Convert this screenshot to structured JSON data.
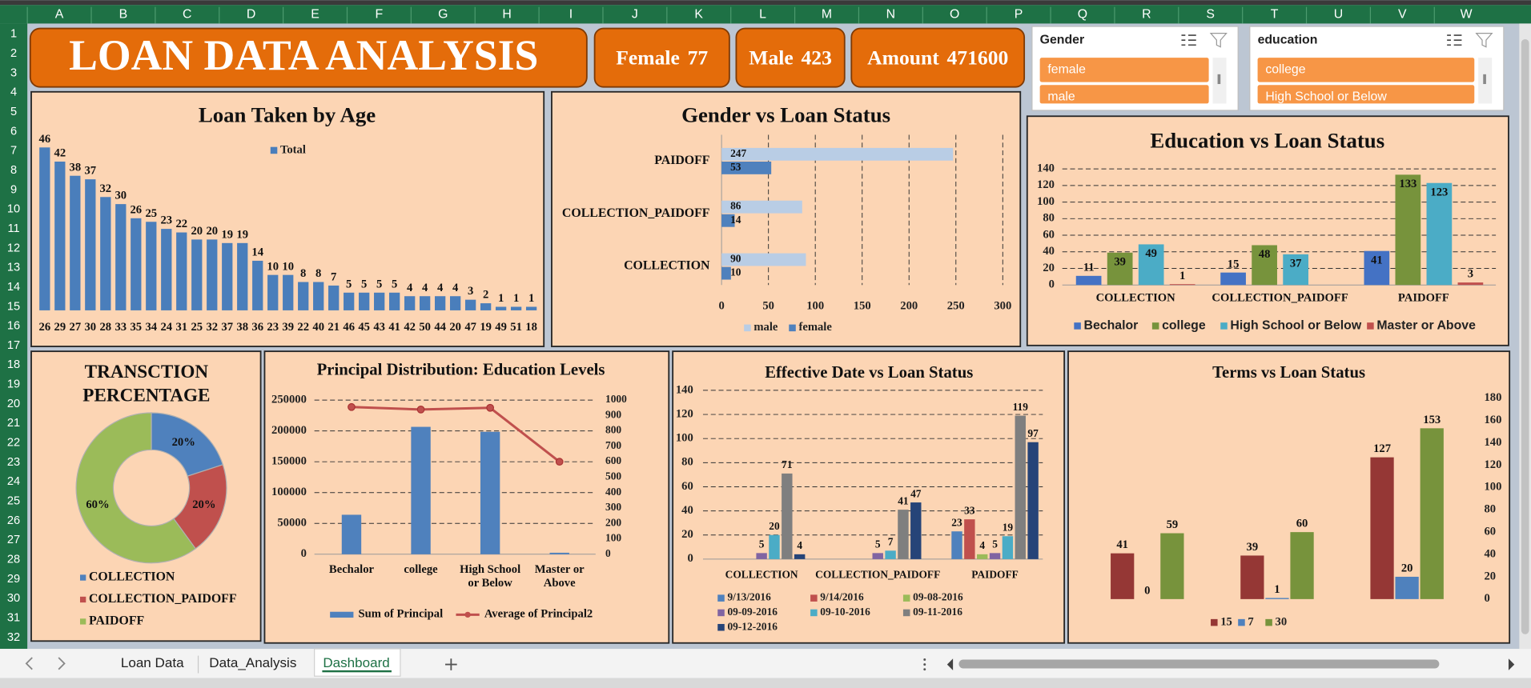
{
  "sheet": {
    "columns": [
      "A",
      "B",
      "C",
      "D",
      "E",
      "F",
      "G",
      "H",
      "I",
      "J",
      "K",
      "L",
      "M",
      "N",
      "O",
      "P",
      "Q",
      "R",
      "S",
      "T",
      "U",
      "V",
      "W"
    ],
    "rows": [
      1,
      2,
      3,
      4,
      5,
      6,
      7,
      8,
      9,
      10,
      11,
      12,
      13,
      14,
      15,
      16,
      17,
      18,
      19,
      20,
      21,
      22,
      23,
      24,
      25,
      26,
      27,
      28,
      29,
      30,
      31,
      32
    ]
  },
  "header": {
    "title": "LOAN DATA ANALYSIS"
  },
  "kpis": [
    {
      "label": "Female",
      "value": 77
    },
    {
      "label": "Male",
      "value": 423
    },
    {
      "label": "Amount",
      "value": 471600
    }
  ],
  "slicers": [
    {
      "title": "Gender",
      "items": [
        "female",
        "male"
      ]
    },
    {
      "title": "education",
      "items": [
        "college",
        "High School or Below"
      ]
    }
  ],
  "tabs": {
    "items": [
      "Loan Data",
      "Data_Analysis",
      "Dashboard"
    ],
    "active": 2
  },
  "chart_data": [
    {
      "type": "bar",
      "title": "Loan Taken by Age",
      "categories": [
        "26",
        "29",
        "27",
        "30",
        "28",
        "33",
        "35",
        "34",
        "24",
        "31",
        "25",
        "32",
        "37",
        "38",
        "36",
        "23",
        "39",
        "22",
        "40",
        "21",
        "46",
        "45",
        "43",
        "41",
        "42",
        "50",
        "44",
        "20",
        "47",
        "19",
        "49",
        "51",
        "18"
      ],
      "series": [
        {
          "name": "Total",
          "color": "#4a7ebb",
          "values": [
            46,
            42,
            38,
            37,
            32,
            30,
            26,
            25,
            23,
            22,
            20,
            20,
            19,
            19,
            14,
            10,
            10,
            8,
            8,
            7,
            5,
            5,
            5,
            5,
            4,
            4,
            4,
            4,
            3,
            2,
            1,
            1,
            1
          ]
        }
      ],
      "grid": false
    },
    {
      "type": "bar",
      "orientation": "horizontal",
      "title": "Gender vs Loan Status",
      "categories": [
        "COLLECTION",
        "COLLECTION_PAIDOFF",
        "PAIDOFF"
      ],
      "series": [
        {
          "name": "male",
          "color": "#b9cde5",
          "values": [
            90,
            86,
            247
          ]
        },
        {
          "name": "female",
          "color": "#4f81bd",
          "values": [
            10,
            14,
            53
          ]
        }
      ],
      "xlim": [
        0,
        300
      ],
      "xticks": [
        0,
        50,
        100,
        150,
        200,
        250,
        300
      ],
      "grid": true
    },
    {
      "type": "bar",
      "title": "Education vs Loan Status",
      "categories": [
        "COLLECTION",
        "COLLECTION_PAIDOFF",
        "PAIDOFF"
      ],
      "series": [
        {
          "name": "Bechalor",
          "color": "#4472c4",
          "values": [
            11,
            15,
            41
          ]
        },
        {
          "name": "college",
          "color": "#77933c",
          "values": [
            39,
            48,
            133
          ]
        },
        {
          "name": "High School or Below",
          "color": "#4bacc6",
          "values": [
            49,
            37,
            123
          ]
        },
        {
          "name": "Master or Above",
          "color": "#c0504d",
          "values": [
            1,
            null,
            3
          ]
        }
      ],
      "ylim": [
        0,
        140
      ],
      "yticks": [
        0,
        20,
        40,
        60,
        80,
        100,
        120,
        140
      ],
      "grid": true
    },
    {
      "type": "pie",
      "donut": true,
      "title": "TRANSCTION PERCENTAGE",
      "categories": [
        "COLLECTION",
        "COLLECTION_PAIDOFF",
        "PAIDOFF"
      ],
      "values": [
        20,
        20,
        60
      ],
      "value_labels": [
        "20%",
        "20%",
        "60%"
      ],
      "colors": [
        "#4f81bd",
        "#c0504d",
        "#9bbb59"
      ]
    },
    {
      "type": "combo",
      "title": "Principal Distribution: Education Levels",
      "categories": [
        "Bechalor",
        "college",
        "High School or Below",
        "Master or Above"
      ],
      "series": [
        {
          "name": "Sum of Principal",
          "type": "bar",
          "color": "#4f81bd",
          "values": [
            64000,
            206600,
            198600,
            2400
          ]
        },
        {
          "name": "Average of Principal2",
          "type": "line",
          "axis": "y2",
          "color": "#c0504d",
          "values": [
            955,
            939,
            950,
            600
          ]
        }
      ],
      "ylim": [
        0,
        250000
      ],
      "yticks": [
        0,
        50000,
        100000,
        150000,
        200000,
        250000
      ],
      "y2lim": [
        0,
        1000
      ],
      "y2ticks": [
        0,
        100,
        200,
        300,
        400,
        500,
        600,
        700,
        800,
        900,
        1000
      ],
      "grid": true
    },
    {
      "type": "bar",
      "title": "Effective Date vs Loan Status",
      "categories": [
        "COLLECTION",
        "COLLECTION_PAIDOFF",
        "PAIDOFF"
      ],
      "series": [
        {
          "name": "9/13/2016",
          "color": "#4f81bd",
          "values": [
            null,
            null,
            23
          ]
        },
        {
          "name": "9/14/2016",
          "color": "#c0504d",
          "values": [
            null,
            null,
            33
          ]
        },
        {
          "name": "09-08-2016",
          "color": "#9bbb59",
          "values": [
            null,
            null,
            4
          ]
        },
        {
          "name": "09-09-2016",
          "color": "#8064a2",
          "values": [
            5,
            5,
            5
          ]
        },
        {
          "name": "09-10-2016",
          "color": "#4bacc6",
          "values": [
            20,
            7,
            19
          ]
        },
        {
          "name": "09-11-2016",
          "color": "#7f7f7f",
          "values": [
            71,
            41,
            119
          ]
        },
        {
          "name": "09-12-2016",
          "color": "#264478",
          "values": [
            4,
            47,
            97
          ]
        }
      ],
      "ylim": [
        0,
        140
      ],
      "yticks": [
        0,
        20,
        40,
        60,
        80,
        100,
        120,
        140
      ],
      "grid": true
    },
    {
      "type": "bar",
      "title": "Terms vs Loan Status",
      "categories": [
        null,
        null,
        null
      ],
      "series": [
        {
          "name": "15",
          "color": "#953735",
          "axis": "y2",
          "values": [
            41,
            39,
            127
          ]
        },
        {
          "name": "7",
          "color": "#4f81bd",
          "axis": "y2",
          "values": [
            0,
            1,
            20
          ]
        },
        {
          "name": "30",
          "color": "#77933c",
          "axis": "y2",
          "values": [
            59,
            60,
            153
          ]
        }
      ],
      "y2lim": [
        0,
        180
      ],
      "y2ticks": [
        0,
        20,
        40,
        60,
        80,
        100,
        120,
        140,
        160,
        180
      ],
      "grid": false
    }
  ]
}
